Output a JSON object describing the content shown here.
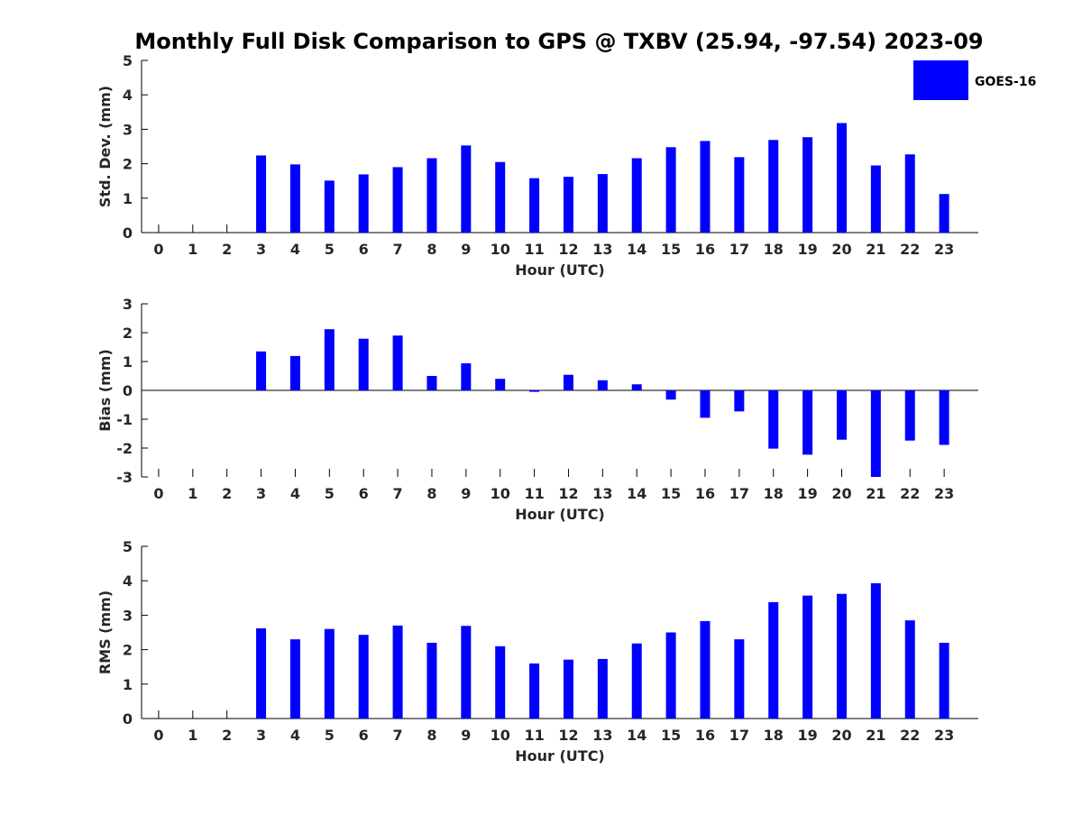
{
  "title": "Monthly Full Disk Comparison to GPS @ TXBV (25.94, -97.54) 2023-09",
  "legend": {
    "label": "GOES-16",
    "color": "#0000ff",
    "placement": "top-right"
  },
  "chart_data": [
    {
      "type": "bar",
      "panel": "std-dev",
      "xlabel": "Hour (UTC)",
      "ylabel": "Std. Dev. (mm)",
      "ylim": [
        0,
        5
      ],
      "yticks": [
        "0",
        "1",
        "2",
        "3",
        "4",
        "5"
      ],
      "categories": [
        "0",
        "1",
        "2",
        "3",
        "4",
        "5",
        "6",
        "7",
        "8",
        "9",
        "10",
        "11",
        "12",
        "13",
        "14",
        "15",
        "16",
        "17",
        "18",
        "19",
        "20",
        "21",
        "22",
        "23"
      ],
      "series": [
        {
          "name": "GOES-16",
          "color": "#0000ff",
          "values": [
            null,
            null,
            null,
            2.24,
            1.98,
            1.51,
            1.69,
            1.9,
            2.16,
            2.53,
            2.05,
            1.58,
            1.62,
            1.7,
            2.16,
            2.48,
            2.66,
            2.19,
            2.69,
            2.77,
            3.18,
            1.95,
            2.27,
            1.12
          ]
        }
      ]
    },
    {
      "type": "bar",
      "panel": "bias",
      "xlabel": "Hour (UTC)",
      "ylabel": "Bias (mm)",
      "ylim": [
        -3,
        3
      ],
      "yticks": [
        "-3",
        "-2",
        "-1",
        "0",
        "1",
        "2",
        "3"
      ],
      "categories": [
        "0",
        "1",
        "2",
        "3",
        "4",
        "5",
        "6",
        "7",
        "8",
        "9",
        "10",
        "11",
        "12",
        "13",
        "14",
        "15",
        "16",
        "17",
        "18",
        "19",
        "20",
        "21",
        "22",
        "23"
      ],
      "series": [
        {
          "name": "GOES-16",
          "color": "#0000ff",
          "values": [
            null,
            null,
            null,
            1.35,
            1.19,
            2.12,
            1.79,
            1.9,
            0.5,
            0.94,
            0.4,
            -0.05,
            0.54,
            0.35,
            0.21,
            -0.32,
            -0.95,
            -0.73,
            -2.02,
            -2.23,
            -1.71,
            -3.05,
            -1.74,
            -1.89
          ]
        }
      ]
    },
    {
      "type": "bar",
      "panel": "rms",
      "xlabel": "Hour (UTC)",
      "ylabel": "RMS (mm)",
      "ylim": [
        0,
        5
      ],
      "yticks": [
        "0",
        "1",
        "2",
        "3",
        "4",
        "5"
      ],
      "categories": [
        "0",
        "1",
        "2",
        "3",
        "4",
        "5",
        "6",
        "7",
        "8",
        "9",
        "10",
        "11",
        "12",
        "13",
        "14",
        "15",
        "16",
        "17",
        "18",
        "19",
        "20",
        "21",
        "22",
        "23"
      ],
      "series": [
        {
          "name": "GOES-16",
          "color": "#0000ff",
          "values": [
            null,
            null,
            null,
            2.62,
            2.3,
            2.6,
            2.43,
            2.7,
            2.2,
            2.69,
            2.1,
            1.6,
            1.71,
            1.73,
            2.18,
            2.5,
            2.83,
            2.3,
            3.38,
            3.57,
            3.62,
            3.93,
            2.85,
            2.2
          ]
        }
      ]
    }
  ]
}
